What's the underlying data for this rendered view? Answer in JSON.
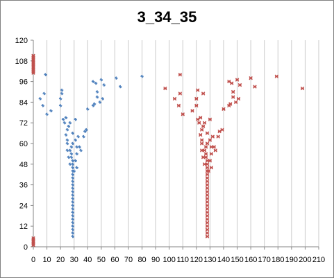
{
  "chart_data": {
    "type": "scatter",
    "title": "3_34_35",
    "xlabel": "",
    "ylabel": "",
    "xlim": [
      0,
      210
    ],
    "ylim": [
      0,
      120
    ],
    "x_ticks": [
      0,
      10,
      20,
      30,
      40,
      50,
      60,
      70,
      80,
      90,
      100,
      110,
      120,
      130,
      140,
      150,
      160,
      170,
      180,
      190,
      200,
      210
    ],
    "y_ticks": [
      0,
      12,
      24,
      36,
      48,
      60,
      72,
      84,
      96,
      108,
      120
    ],
    "grid": "vertical major gridlines",
    "legend": "none",
    "series": [
      {
        "color": "#c0504d",
        "marker": "cross",
        "points": [
          [
            0,
            1
          ],
          [
            0,
            2
          ],
          [
            0,
            3
          ],
          [
            0,
            4
          ],
          [
            0,
            5
          ],
          [
            0,
            101
          ],
          [
            0,
            102
          ],
          [
            0,
            103
          ],
          [
            0,
            104
          ],
          [
            0,
            105
          ],
          [
            0,
            106
          ],
          [
            0,
            107
          ],
          [
            0,
            108
          ],
          [
            0,
            109
          ],
          [
            0,
            110
          ],
          [
            0,
            111
          ],
          [
            128,
            6
          ],
          [
            128,
            8
          ],
          [
            128,
            10
          ],
          [
            128,
            12
          ],
          [
            128,
            14
          ],
          [
            128,
            16
          ],
          [
            128,
            18
          ],
          [
            128,
            20
          ],
          [
            128,
            22
          ],
          [
            128,
            24
          ],
          [
            128,
            26
          ],
          [
            128,
            28
          ],
          [
            128,
            30
          ],
          [
            128,
            32
          ],
          [
            128,
            34
          ],
          [
            128,
            36
          ],
          [
            128,
            38
          ],
          [
            128,
            40
          ],
          [
            128,
            42
          ],
          [
            128,
            44
          ],
          [
            128,
            46
          ],
          [
            128,
            48
          ],
          [
            128,
            50
          ],
          [
            127,
            52
          ],
          [
            127,
            54
          ],
          [
            126,
            56
          ],
          [
            127,
            58
          ],
          [
            128,
            60
          ],
          [
            130,
            62
          ],
          [
            132,
            64
          ],
          [
            133,
            58
          ],
          [
            134,
            56
          ],
          [
            131,
            54
          ],
          [
            130,
            50
          ],
          [
            131,
            46
          ],
          [
            129,
            44
          ],
          [
            126,
            48
          ],
          [
            125,
            52
          ],
          [
            124,
            56
          ],
          [
            124,
            62
          ],
          [
            123,
            65
          ],
          [
            124,
            68
          ],
          [
            125,
            70
          ],
          [
            122,
            72
          ],
          [
            121,
            74
          ],
          [
            123,
            75
          ],
          [
            126,
            72
          ],
          [
            130,
            74
          ],
          [
            136,
            64
          ],
          [
            137,
            67
          ],
          [
            128,
            66
          ],
          [
            131,
            58
          ],
          [
            124,
            60
          ],
          [
            120,
            86
          ],
          [
            125,
            89
          ],
          [
            117,
            79
          ],
          [
            120,
            82
          ],
          [
            108,
            89
          ],
          [
            110,
            77
          ],
          [
            121,
            91
          ],
          [
            104,
            86
          ],
          [
            107,
            82
          ],
          [
            139,
            68
          ],
          [
            140,
            80
          ],
          [
            144,
            82
          ],
          [
            145,
            83
          ],
          [
            147,
            87
          ],
          [
            147,
            90
          ],
          [
            150,
            97
          ],
          [
            149,
            84
          ],
          [
            151,
            86
          ],
          [
            144,
            96
          ],
          [
            146,
            95
          ],
          [
            152,
            94
          ],
          [
            97,
            92
          ],
          [
            108,
            100
          ],
          [
            160,
            98
          ],
          [
            163,
            93
          ],
          [
            179,
            99
          ],
          [
            198,
            92
          ]
        ]
      },
      {
        "color": "#4f81bd",
        "marker": "plus",
        "points": [
          [
            29,
            6
          ],
          [
            29,
            8
          ],
          [
            29,
            10
          ],
          [
            29,
            12
          ],
          [
            29,
            14
          ],
          [
            29,
            16
          ],
          [
            29,
            18
          ],
          [
            29,
            20
          ],
          [
            29,
            22
          ],
          [
            29,
            24
          ],
          [
            29,
            26
          ],
          [
            29,
            28
          ],
          [
            29,
            30
          ],
          [
            29,
            32
          ],
          [
            29,
            34
          ],
          [
            29,
            36
          ],
          [
            29,
            38
          ],
          [
            29,
            40
          ],
          [
            29,
            42
          ],
          [
            29,
            44
          ],
          [
            29,
            46
          ],
          [
            29,
            48
          ],
          [
            29,
            50
          ],
          [
            28,
            52
          ],
          [
            28,
            54
          ],
          [
            27,
            56
          ],
          [
            28,
            58
          ],
          [
            29,
            60
          ],
          [
            31,
            62
          ],
          [
            33,
            64
          ],
          [
            34,
            58
          ],
          [
            35,
            56
          ],
          [
            32,
            54
          ],
          [
            31,
            50
          ],
          [
            32,
            46
          ],
          [
            30,
            44
          ],
          [
            27,
            48
          ],
          [
            26,
            52
          ],
          [
            25,
            56
          ],
          [
            25,
            62
          ],
          [
            24,
            65
          ],
          [
            25,
            68
          ],
          [
            26,
            70
          ],
          [
            23,
            72
          ],
          [
            22,
            74
          ],
          [
            24,
            75
          ],
          [
            27,
            72
          ],
          [
            31,
            74
          ],
          [
            37,
            64
          ],
          [
            38,
            67
          ],
          [
            29,
            66
          ],
          [
            32,
            58
          ],
          [
            25,
            60
          ],
          [
            20,
            86
          ],
          [
            21,
            89
          ],
          [
            13,
            79
          ],
          [
            20,
            82
          ],
          [
            8,
            89
          ],
          [
            10,
            77
          ],
          [
            21,
            91
          ],
          [
            5,
            86
          ],
          [
            7,
            82
          ],
          [
            39,
            68
          ],
          [
            40,
            80
          ],
          [
            44,
            82
          ],
          [
            45,
            83
          ],
          [
            47,
            87
          ],
          [
            47,
            90
          ],
          [
            50,
            97
          ],
          [
            49,
            84
          ],
          [
            51,
            86
          ],
          [
            44,
            96
          ],
          [
            46,
            95
          ],
          [
            52,
            94
          ],
          [
            9,
            100
          ],
          [
            61,
            98
          ],
          [
            64,
            93
          ],
          [
            80,
            99
          ]
        ]
      }
    ]
  }
}
